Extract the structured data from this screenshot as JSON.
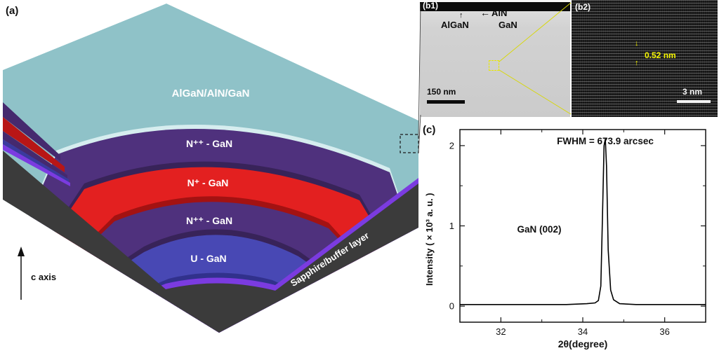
{
  "figure": {
    "panels": {
      "a": {
        "label": "(a)",
        "layer_labels": {
          "top": "AlGaN/AlN/GaN",
          "npp1": "N⁺⁺ - GaN",
          "np": "N⁺ - GaN",
          "npp2": "N⁺⁺ - GaN",
          "u": "U - GaN",
          "substrate": "Sapphire/buffer layer"
        },
        "c_axis_label": "c axis",
        "colors": {
          "algan_aln_gan": "#8fc2c8",
          "npp_gan": "#4f317d",
          "np_gan": "#e32020",
          "u_gan": "#4848b4",
          "buffer": "#7b3be0",
          "sapphire": "#3b3b3b"
        }
      },
      "b1": {
        "label": "(b1)",
        "aln_label": "AlN",
        "algan_label": "AlGaN",
        "gan_label": "GaN",
        "scale_bar": "150 nm"
      },
      "b2": {
        "label": "(b2)",
        "spacing_annotation": "0.52 nm",
        "scale_bar": "3 nm",
        "annotation_color": "#f5f500"
      },
      "c": {
        "label": "(c)",
        "fwhm_annotation": "FWHM = 673.9 arcsec",
        "peak_label": "GaN (002)",
        "xlabel": "2θ(degree)",
        "ylabel": "Intensity ( × 10³ a. u. )"
      }
    },
    "icons": {
      "arrow_left": "←",
      "arrow_up": "↑",
      "arrow_down": "↓"
    }
  },
  "chart_data": {
    "type": "line",
    "title": "XRD rocking curve of GaN (002)",
    "xlabel": "2θ(degree)",
    "ylabel": "Intensity ( × 10³ a. u. )",
    "xlim": [
      31.0,
      37.0
    ],
    "ylim": [
      -0.2,
      2.2
    ],
    "xticks": [
      32,
      34,
      36
    ],
    "xticks_minor": [
      31,
      33,
      35,
      37
    ],
    "yticks": [
      0,
      1,
      2
    ],
    "yticks_minor": [
      0.5,
      1.5
    ],
    "grid": false,
    "legend": "none",
    "annotations": [
      "FWHM = 673.9 arcsec",
      "GaN (002)"
    ],
    "series": [
      {
        "name": "GaN (002)",
        "x": [
          31.0,
          32.5,
          33.6,
          34.1,
          34.3,
          34.38,
          34.44,
          34.48,
          34.52,
          34.55,
          34.58,
          34.62,
          34.68,
          34.75,
          34.9,
          35.3,
          36.6,
          37.0
        ],
        "y": [
          0.02,
          0.02,
          0.02,
          0.03,
          0.04,
          0.07,
          0.25,
          1.1,
          2.0,
          2.08,
          1.75,
          0.7,
          0.2,
          0.08,
          0.03,
          0.02,
          0.02,
          0.02
        ]
      }
    ]
  }
}
